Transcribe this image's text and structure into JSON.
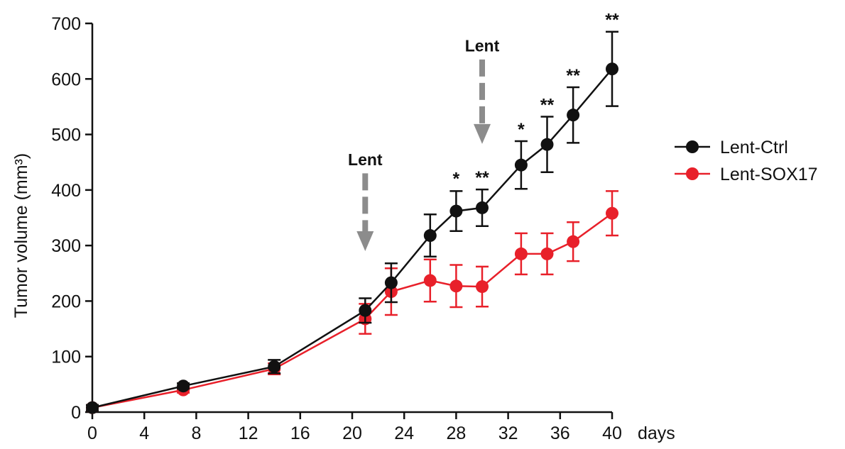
{
  "chart_data": {
    "type": "line",
    "xlabel": "days",
    "ylabel": "Tumor volume (mm³)",
    "xlim": [
      0,
      40
    ],
    "ylim": [
      0,
      700
    ],
    "x_ticks": [
      0,
      4,
      8,
      12,
      16,
      20,
      24,
      28,
      32,
      36,
      40
    ],
    "y_ticks": [
      0,
      100,
      200,
      300,
      400,
      500,
      600,
      700
    ],
    "grid": false,
    "legend_position": "right",
    "x": [
      0,
      7,
      14,
      21,
      23,
      26,
      28,
      30,
      33,
      35,
      37,
      40
    ],
    "series": [
      {
        "name": "Lent-Ctrl",
        "color": "#111111",
        "values": [
          8,
          47,
          82,
          183,
          233,
          318,
          362,
          368,
          445,
          482,
          535,
          618
        ],
        "error": [
          5,
          5,
          12,
          22,
          35,
          38,
          36,
          33,
          43,
          50,
          50,
          67
        ]
      },
      {
        "name": "Lent-SOX17",
        "color": "#e8202a",
        "values": [
          8,
          40,
          78,
          168,
          217,
          237,
          227,
          226,
          285,
          285,
          307,
          358
        ],
        "error": [
          5,
          5,
          10,
          27,
          42,
          38,
          38,
          36,
          37,
          37,
          35,
          40
        ]
      }
    ],
    "significance": [
      {
        "x": 28,
        "label": "*",
        "value": 399
      },
      {
        "x": 30,
        "label": "**",
        "value": 401
      },
      {
        "x": 33,
        "label": "*",
        "value": 488
      },
      {
        "x": 35,
        "label": "**",
        "value": 532
      },
      {
        "x": 37,
        "label": "**",
        "value": 585
      },
      {
        "x": 40,
        "label": "**",
        "value": 685
      }
    ],
    "annotations": [
      {
        "label": "Lent",
        "x": 21,
        "text_value": 455,
        "arrow_from": 430,
        "arrow_to": 290
      },
      {
        "label": "Lent",
        "x": 30,
        "text_value": 660,
        "arrow_from": 635,
        "arrow_to": 483
      }
    ],
    "annotation_color": "#8c8c8c"
  }
}
